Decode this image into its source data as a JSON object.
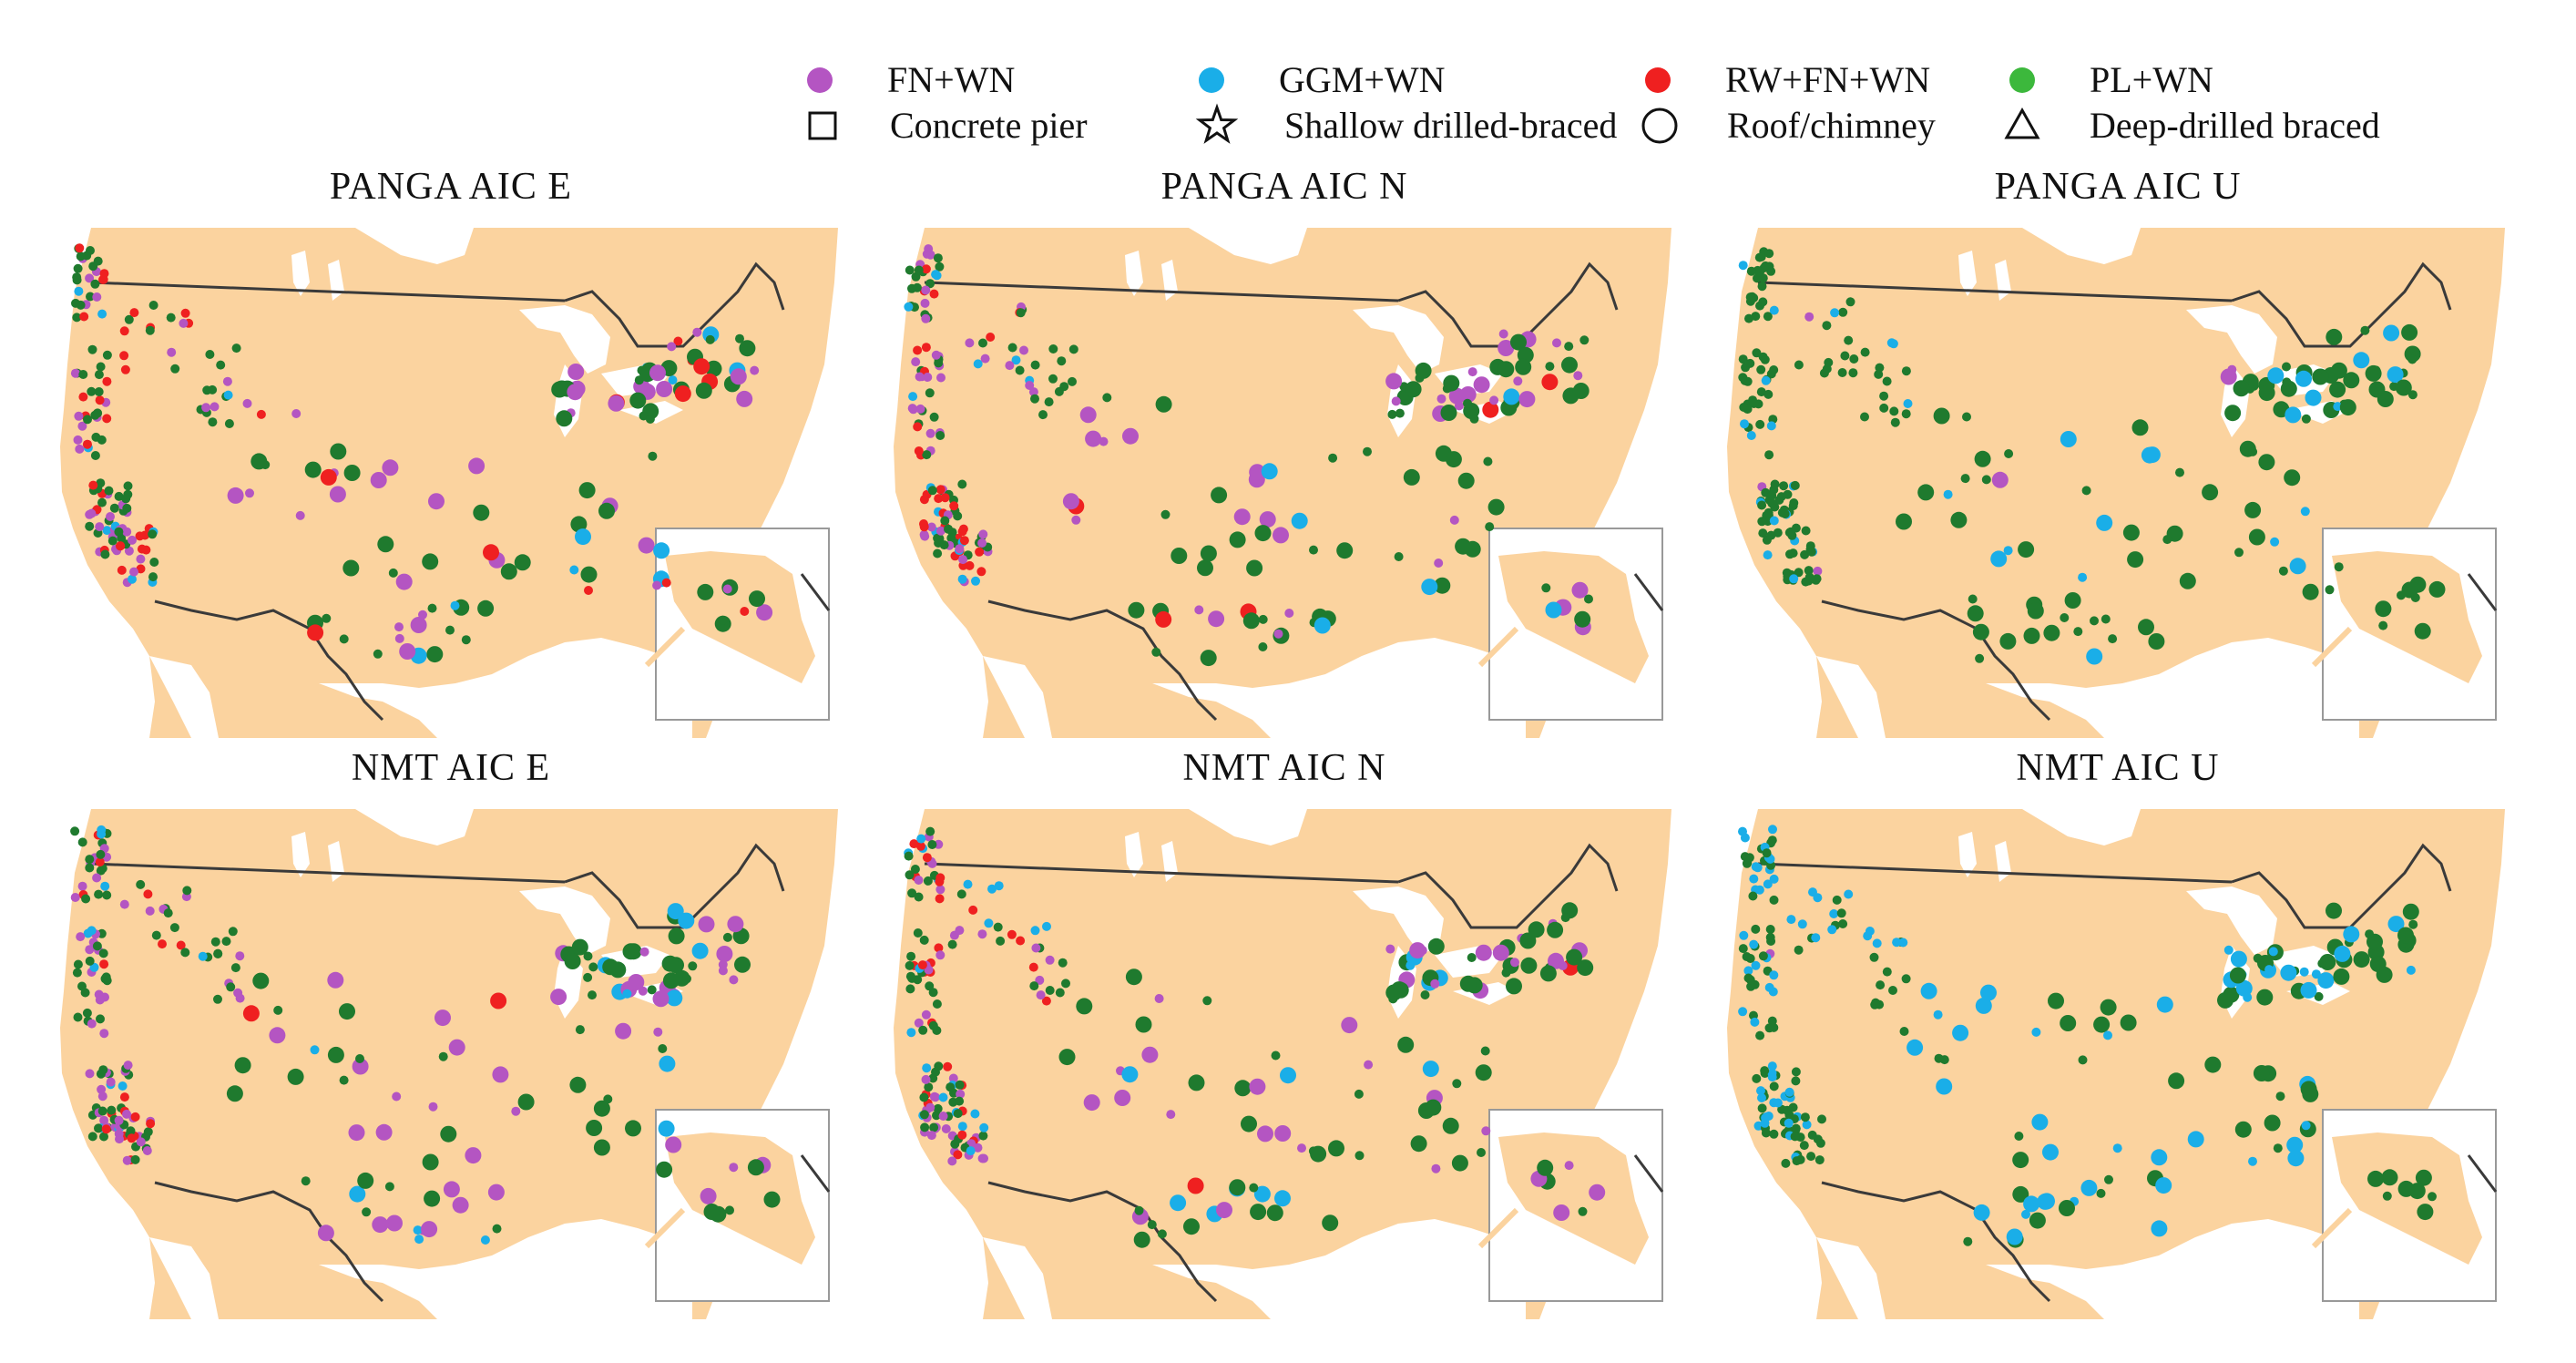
{
  "colors": {
    "land": "#fbd39f",
    "water": "#ffffff",
    "boundary": "#3a3a3a",
    "fn_wn": "#b455c2",
    "ggm_wn": "#1aaee8",
    "rw_fn_wn": "#ef2020",
    "pl_wn": "#1f7a2e",
    "pl_wn_legend": "#3cb83c"
  },
  "legend": {
    "noise_models": [
      {
        "key": "fn_wn",
        "label": "FN+WN"
      },
      {
        "key": "ggm_wn",
        "label": "GGM+WN"
      },
      {
        "key": "rw_fn_wn",
        "label": "RW+FN+WN"
      },
      {
        "key": "pl_wn",
        "label": "PL+WN"
      }
    ],
    "monument_types": [
      {
        "key": "concrete_pier",
        "label": "Concrete pier",
        "icon": "square-icon"
      },
      {
        "key": "shallow_drilled_braced",
        "label": "Shallow drilled-braced",
        "icon": "star-icon"
      },
      {
        "key": "roof_chimney",
        "label": "Roof/chimney",
        "icon": "circle-icon"
      },
      {
        "key": "deep_drilled_braced",
        "label": "Deep-drilled braced",
        "icon": "triangle-icon"
      }
    ]
  },
  "panels": [
    {
      "title": "PANGA  AIC  E",
      "mix": {
        "fn_wn": 0.3,
        "ggm_wn": 0.08,
        "rw_fn_wn": 0.2,
        "pl_wn": 0.42
      }
    },
    {
      "title": "PANGA AIC  N",
      "mix": {
        "fn_wn": 0.3,
        "ggm_wn": 0.1,
        "rw_fn_wn": 0.22,
        "pl_wn": 0.38
      }
    },
    {
      "title": "PANGA  AIC  U",
      "mix": {
        "fn_wn": 0.02,
        "ggm_wn": 0.2,
        "rw_fn_wn": 0.0,
        "pl_wn": 0.78
      }
    },
    {
      "title": "NMT  AIC  E",
      "mix": {
        "fn_wn": 0.32,
        "ggm_wn": 0.08,
        "rw_fn_wn": 0.18,
        "pl_wn": 0.42
      }
    },
    {
      "title": "NMT  AIC  N",
      "mix": {
        "fn_wn": 0.34,
        "ggm_wn": 0.1,
        "rw_fn_wn": 0.2,
        "pl_wn": 0.36
      }
    },
    {
      "title": "NMT  AIC  U",
      "mix": {
        "fn_wn": 0.02,
        "ggm_wn": 0.4,
        "rw_fn_wn": 0.0,
        "pl_wn": 0.58
      }
    }
  ]
}
